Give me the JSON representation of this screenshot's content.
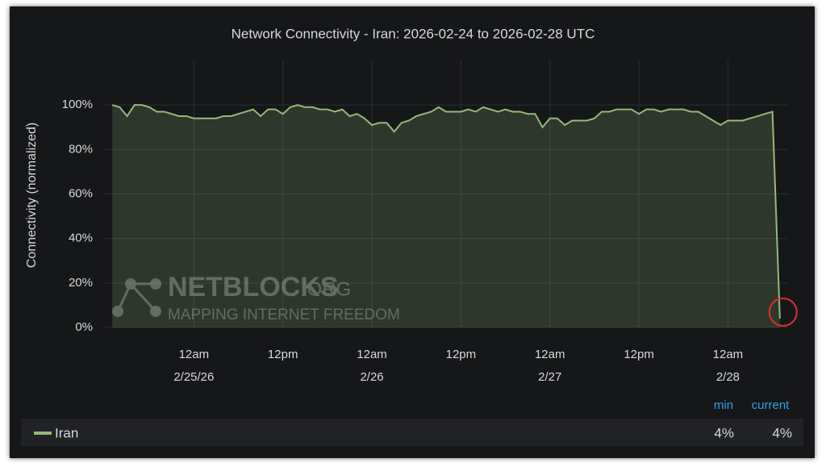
{
  "chart_data": {
    "type": "line",
    "title": "Network Connectivity - Iran: 2026-02-24 to 2026-02-28 UTC",
    "y_label": "Connectivity (normalized)",
    "watermark": {
      "brand": "NETBLOCKS",
      "suffix": ".ORG",
      "tagline": "MAPPING INTERNET FREEDOM"
    },
    "xlim": [
      "2026-02-24 12:00",
      "2026-02-28 08:00"
    ],
    "xticks": [
      {
        "value": "2026-02-25 00:00",
        "label": [
          "12am",
          "2/25/26"
        ]
      },
      {
        "value": "2026-02-25 12:00",
        "label": [
          "12pm"
        ]
      },
      {
        "value": "2026-02-26 00:00",
        "label": [
          "12am",
          "2/26"
        ]
      },
      {
        "value": "2026-02-26 12:00",
        "label": [
          "12pm"
        ]
      },
      {
        "value": "2026-02-27 00:00",
        "label": [
          "12am",
          "2/27"
        ]
      },
      {
        "value": "2026-02-27 12:00",
        "label": [
          "12pm"
        ]
      },
      {
        "value": "2026-02-28 00:00",
        "label": [
          "12am",
          "2/28"
        ]
      }
    ],
    "ylim": [
      0,
      120
    ],
    "yticks": [
      {
        "value": 0,
        "label": "0%"
      },
      {
        "value": 20,
        "label": "20%"
      },
      {
        "value": 40,
        "label": "40%"
      },
      {
        "value": 60,
        "label": "60%"
      },
      {
        "value": 80,
        "label": "80%"
      },
      {
        "value": 100,
        "label": "100%"
      }
    ],
    "grid": true,
    "fill_area": true,
    "x": [
      "2026-02-24 13:00",
      "2026-02-24 14:00",
      "2026-02-24 15:00",
      "2026-02-24 16:00",
      "2026-02-24 17:00",
      "2026-02-24 18:00",
      "2026-02-24 19:00",
      "2026-02-24 20:00",
      "2026-02-24 21:00",
      "2026-02-24 22:00",
      "2026-02-24 23:00",
      "2026-02-25 00:00",
      "2026-02-25 01:00",
      "2026-02-25 02:00",
      "2026-02-25 03:00",
      "2026-02-25 04:00",
      "2026-02-25 05:00",
      "2026-02-25 06:00",
      "2026-02-25 07:00",
      "2026-02-25 08:00",
      "2026-02-25 09:00",
      "2026-02-25 10:00",
      "2026-02-25 11:00",
      "2026-02-25 12:00",
      "2026-02-25 13:00",
      "2026-02-25 14:00",
      "2026-02-25 15:00",
      "2026-02-25 16:00",
      "2026-02-25 17:00",
      "2026-02-25 18:00",
      "2026-02-25 19:00",
      "2026-02-25 20:00",
      "2026-02-25 21:00",
      "2026-02-25 22:00",
      "2026-02-25 23:00",
      "2026-02-26 00:00",
      "2026-02-26 01:00",
      "2026-02-26 02:00",
      "2026-02-26 03:00",
      "2026-02-26 04:00",
      "2026-02-26 05:00",
      "2026-02-26 06:00",
      "2026-02-26 07:00",
      "2026-02-26 08:00",
      "2026-02-26 09:00",
      "2026-02-26 10:00",
      "2026-02-26 11:00",
      "2026-02-26 12:00",
      "2026-02-26 13:00",
      "2026-02-26 14:00",
      "2026-02-26 15:00",
      "2026-02-26 16:00",
      "2026-02-26 17:00",
      "2026-02-26 18:00",
      "2026-02-26 19:00",
      "2026-02-26 20:00",
      "2026-02-26 21:00",
      "2026-02-26 22:00",
      "2026-02-26 23:00",
      "2026-02-27 00:00",
      "2026-02-27 01:00",
      "2026-02-27 02:00",
      "2026-02-27 03:00",
      "2026-02-27 04:00",
      "2026-02-27 05:00",
      "2026-02-27 06:00",
      "2026-02-27 07:00",
      "2026-02-27 08:00",
      "2026-02-27 09:00",
      "2026-02-27 10:00",
      "2026-02-27 11:00",
      "2026-02-27 12:00",
      "2026-02-27 13:00",
      "2026-02-27 14:00",
      "2026-02-27 15:00",
      "2026-02-27 16:00",
      "2026-02-27 17:00",
      "2026-02-27 18:00",
      "2026-02-27 19:00",
      "2026-02-27 20:00",
      "2026-02-27 21:00",
      "2026-02-27 22:00",
      "2026-02-27 23:00",
      "2026-02-28 00:00",
      "2026-02-28 01:00",
      "2026-02-28 02:00",
      "2026-02-28 03:00",
      "2026-02-28 04:00",
      "2026-02-28 05:00",
      "2026-02-28 06:00",
      "2026-02-28 07:00"
    ],
    "series": [
      {
        "name": "Iran",
        "color": "#96b97a",
        "values": [
          100,
          99,
          95,
          100,
          100,
          99,
          97,
          97,
          96,
          95,
          95,
          94,
          94,
          94,
          94,
          95,
          95,
          96,
          97,
          98,
          95,
          98,
          98,
          96,
          99,
          100,
          99,
          99,
          98,
          98,
          97,
          98,
          95,
          96,
          94,
          91,
          92,
          92,
          88,
          92,
          93,
          95,
          96,
          97,
          99,
          97,
          97,
          97,
          98,
          97,
          99,
          98,
          97,
          98,
          97,
          97,
          96,
          96,
          90,
          94,
          94,
          91,
          93,
          93,
          93,
          94,
          97,
          97,
          98,
          98,
          98,
          96,
          98,
          98,
          97,
          98,
          98,
          98,
          97,
          97,
          95,
          93,
          91,
          93,
          93,
          93,
          94,
          95,
          96,
          97,
          4
        ]
      }
    ],
    "legend": {
      "columns": [
        "min",
        "current"
      ],
      "values": [
        4,
        4
      ],
      "value_labels": [
        "4%",
        "4%"
      ]
    }
  }
}
